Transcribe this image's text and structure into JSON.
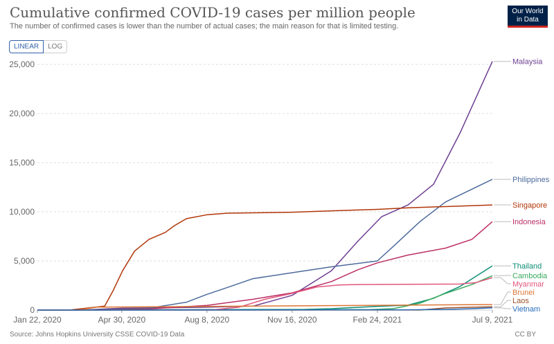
{
  "header": {
    "title": "Cumulative confirmed COVID-19 cases per million people",
    "subtitle": "The number of confirmed cases is lower than the number of actual cases; the main reason for that is limited testing.",
    "logo_line1": "Our World",
    "logo_line2": "in Data"
  },
  "controls": {
    "linear_label": "LINEAR",
    "log_label": "LOG"
  },
  "footer": {
    "source": "Source: Johns Hopkins University CSSE COVID-19 Data",
    "license": "CC BY"
  },
  "chart_data": {
    "type": "line",
    "xlabel": "",
    "ylabel": "",
    "xlim": [
      "2020-01-22",
      "2021-07-09"
    ],
    "ylim": [
      0,
      25000
    ],
    "x_ticks": [
      "2020-01-22",
      "2020-04-30",
      "2020-08-08",
      "2020-11-16",
      "2021-02-24",
      "2021-07-09"
    ],
    "x_tick_labels": [
      "Jan 22, 2020",
      "Apr 30, 2020",
      "Aug 8, 2020",
      "Nov 16, 2020",
      "Feb 24, 2021",
      "Jul 9, 2021"
    ],
    "y_ticks": [
      0,
      5000,
      10000,
      15000,
      20000,
      25000
    ],
    "y_tick_labels": [
      "0",
      "5,000",
      "10,000",
      "15,000",
      "20,000",
      "25,000"
    ],
    "grid": "horizontal dashed",
    "legend": "right end labels",
    "series": [
      {
        "name": "Malaysia",
        "color": "#6d3e91",
        "points": [
          [
            "2020-01-22",
            0
          ],
          [
            "2020-03-15",
            10
          ],
          [
            "2020-05-01",
            200
          ],
          [
            "2020-08-01",
            280
          ],
          [
            "2020-10-01",
            400
          ],
          [
            "2020-11-16",
            1500
          ],
          [
            "2021-01-01",
            4000
          ],
          [
            "2021-02-01",
            7000
          ],
          [
            "2021-03-01",
            9500
          ],
          [
            "2021-04-01",
            10700
          ],
          [
            "2021-05-01",
            12800
          ],
          [
            "2021-06-01",
            18000
          ],
          [
            "2021-07-09",
            25300
          ]
        ]
      },
      {
        "name": "Philippines",
        "color": "#4c6a9c",
        "points": [
          [
            "2020-01-22",
            0
          ],
          [
            "2020-04-01",
            20
          ],
          [
            "2020-06-01",
            200
          ],
          [
            "2020-07-15",
            800
          ],
          [
            "2020-08-08",
            1600
          ],
          [
            "2020-09-01",
            2300
          ],
          [
            "2020-10-01",
            3200
          ],
          [
            "2020-11-16",
            3800
          ],
          [
            "2021-01-01",
            4400
          ],
          [
            "2021-02-24",
            5000
          ],
          [
            "2021-03-15",
            6500
          ],
          [
            "2021-04-15",
            9000
          ],
          [
            "2021-05-15",
            11000
          ],
          [
            "2021-06-15",
            12300
          ],
          [
            "2021-07-09",
            13300
          ]
        ]
      },
      {
        "name": "Singapore",
        "color": "#b13507",
        "points": [
          [
            "2020-01-22",
            0
          ],
          [
            "2020-03-01",
            20
          ],
          [
            "2020-04-10",
            400
          ],
          [
            "2020-04-20",
            2000
          ],
          [
            "2020-05-01",
            4000
          ],
          [
            "2020-05-15",
            6000
          ],
          [
            "2020-06-01",
            7200
          ],
          [
            "2020-06-20",
            7900
          ],
          [
            "2020-07-01",
            8600
          ],
          [
            "2020-07-15",
            9300
          ],
          [
            "2020-08-08",
            9700
          ],
          [
            "2020-09-01",
            9860
          ],
          [
            "2020-11-16",
            9960
          ],
          [
            "2021-01-01",
            10100
          ],
          [
            "2021-02-24",
            10250
          ],
          [
            "2021-04-01",
            10400
          ],
          [
            "2021-07-09",
            10700
          ]
        ]
      },
      {
        "name": "Indonesia",
        "color": "#bc2e64",
        "points": [
          [
            "2020-01-22",
            0
          ],
          [
            "2020-04-01",
            20
          ],
          [
            "2020-06-01",
            120
          ],
          [
            "2020-08-08",
            480
          ],
          [
            "2020-10-01",
            1100
          ],
          [
            "2020-11-16",
            1750
          ],
          [
            "2021-01-01",
            2900
          ],
          [
            "2021-02-01",
            4100
          ],
          [
            "2021-02-24",
            4800
          ],
          [
            "2021-04-01",
            5600
          ],
          [
            "2021-05-15",
            6300
          ],
          [
            "2021-06-15",
            7200
          ],
          [
            "2021-07-09",
            9000
          ]
        ]
      },
      {
        "name": "Thailand",
        "color": "#0d8c76",
        "points": [
          [
            "2020-01-22",
            0
          ],
          [
            "2020-04-01",
            25
          ],
          [
            "2020-12-01",
            70
          ],
          [
            "2021-01-01",
            140
          ],
          [
            "2021-02-24",
            380
          ],
          [
            "2021-04-01",
            500
          ],
          [
            "2021-05-01",
            1200
          ],
          [
            "2021-06-01",
            2400
          ],
          [
            "2021-07-09",
            4500
          ]
        ]
      },
      {
        "name": "Cambodia",
        "color": "#38aa5e",
        "points": [
          [
            "2020-01-22",
            0
          ],
          [
            "2021-02-15",
            40
          ],
          [
            "2021-03-15",
            150
          ],
          [
            "2021-04-15",
            700
          ],
          [
            "2021-05-15",
            1700
          ],
          [
            "2021-06-15",
            2600
          ],
          [
            "2021-07-09",
            3500
          ]
        ]
      },
      {
        "name": "Myanmar",
        "color": "#e1567c",
        "points": [
          [
            "2020-01-22",
            0
          ],
          [
            "2020-08-15",
            30
          ],
          [
            "2020-09-15",
            300
          ],
          [
            "2020-10-15",
            1100
          ],
          [
            "2020-11-16",
            1700
          ],
          [
            "2020-12-15",
            2350
          ],
          [
            "2021-01-10",
            2550
          ],
          [
            "2021-02-01",
            2600
          ],
          [
            "2021-06-01",
            2650
          ],
          [
            "2021-06-20",
            2800
          ],
          [
            "2021-07-09",
            3300
          ]
        ]
      },
      {
        "name": "Brunei",
        "color": "#dc7534",
        "points": [
          [
            "2020-01-22",
            0
          ],
          [
            "2020-03-10",
            5
          ],
          [
            "2020-04-01",
            300
          ],
          [
            "2020-05-01",
            320
          ],
          [
            "2021-07-09",
            560
          ]
        ]
      },
      {
        "name": "Laos",
        "color": "#9a5129",
        "points": [
          [
            "2020-01-22",
            0
          ],
          [
            "2021-04-15",
            10
          ],
          [
            "2021-05-15",
            220
          ],
          [
            "2021-06-15",
            290
          ],
          [
            "2021-07-09",
            330
          ]
        ]
      },
      {
        "name": "Vietnam",
        "color": "#286bbb",
        "points": [
          [
            "2020-01-22",
            0
          ],
          [
            "2020-08-01",
            5
          ],
          [
            "2021-04-01",
            30
          ],
          [
            "2021-05-15",
            60
          ],
          [
            "2021-06-15",
            140
          ],
          [
            "2021-07-09",
            230
          ]
        ]
      }
    ]
  }
}
